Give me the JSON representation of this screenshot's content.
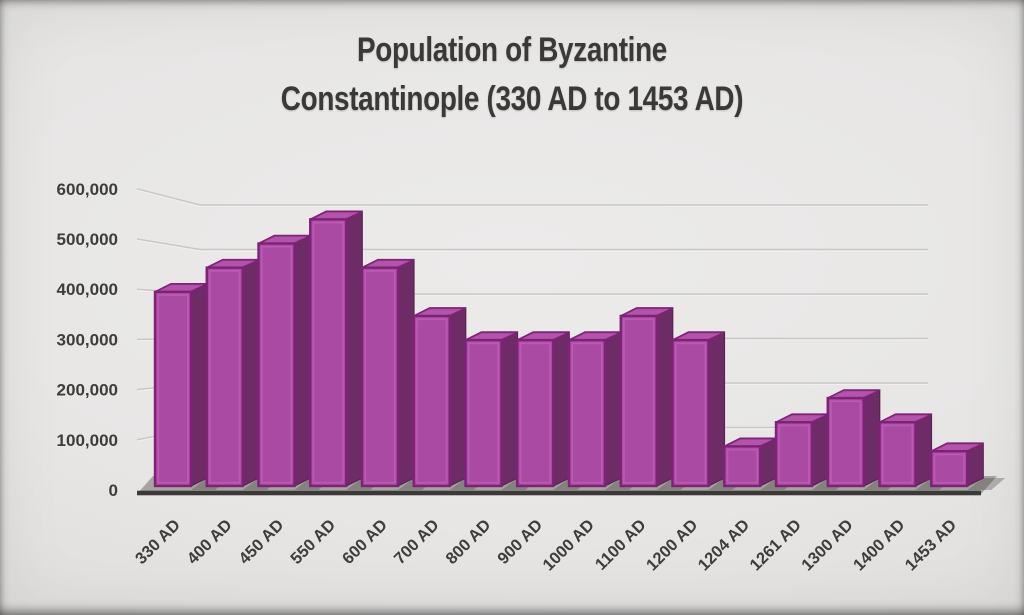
{
  "title": {
    "line1": "Population of Byzantine",
    "line2": "Constantinople (330 AD to 1453 AD)"
  },
  "chart_data": {
    "type": "bar",
    "style": "3d-column",
    "title": "Population of Byzantine Constantinople (330 AD to 1453 AD)",
    "xlabel": "",
    "ylabel": "",
    "categories": [
      "330 AD",
      "400 AD",
      "450 AD",
      "550 AD",
      "600 AD",
      "700 AD",
      "800 AD",
      "900 AD",
      "1000 AD",
      "1100 AD",
      "1200 AD",
      "1204 AD",
      "1261 AD",
      "1300 AD",
      "1400 AD",
      "1453 AD"
    ],
    "values": [
      400000,
      450000,
      500000,
      550000,
      450000,
      350000,
      300000,
      300000,
      300000,
      350000,
      300000,
      80000,
      130000,
      180000,
      130000,
      70000
    ],
    "series_name": "Population",
    "ylim": [
      0,
      600000
    ],
    "y_ticks": [
      0,
      100000,
      200000,
      300000,
      400000,
      500000,
      600000
    ],
    "y_tick_labels": [
      "0",
      "100,000",
      "200,000",
      "300,000",
      "400,000",
      "500,000",
      "600,000"
    ],
    "grid": true,
    "legend": false,
    "colors": {
      "bar_front": "#aa4aa3",
      "bar_front_border": "#7e2276",
      "bar_front_highlight": "#c466bc",
      "bar_side": "#6e2c67",
      "bar_side_border": "#5c2156",
      "bar_top": "#a5439d",
      "bar_top_highlight": "#bd62b5",
      "floor": "#a6a4a1",
      "floor_shadow": "rgba(62,58,56,0.32)",
      "axis_line": "#3b3a38",
      "gridline": "#c9c8c6",
      "gridline_highlight": "#f1f0ef",
      "tick_text": "#3e3d3c",
      "title_text": "#3a3938"
    }
  }
}
